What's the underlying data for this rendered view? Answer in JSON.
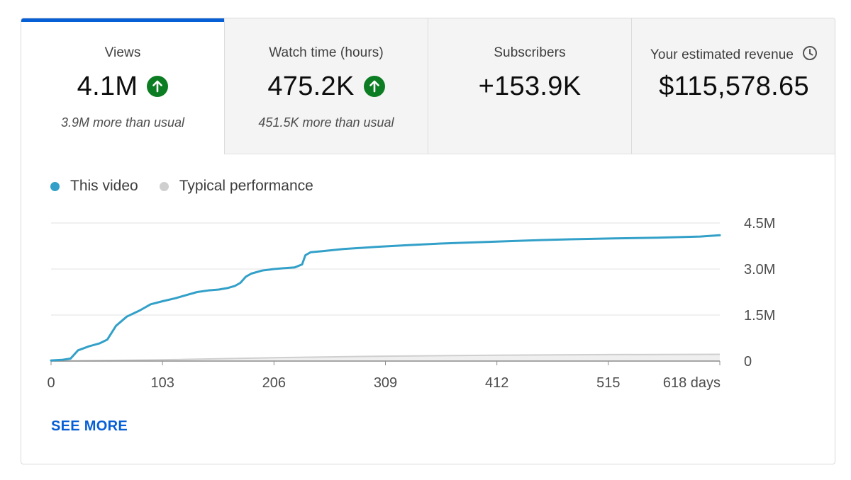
{
  "metrics": [
    {
      "label": "Views",
      "value": "4.1M",
      "trend": "up",
      "sub": "3.9M more than usual",
      "active": true
    },
    {
      "label": "Watch time (hours)",
      "value": "475.2K",
      "trend": "up",
      "sub": "451.5K more than usual",
      "active": false
    },
    {
      "label": "Subscribers",
      "value": "+153.9K",
      "trend": "",
      "sub": "",
      "active": false
    },
    {
      "label": "Your estimated revenue",
      "value": "$115,578.65",
      "trend": "",
      "sub": "",
      "active": false,
      "icon": "clock-icon"
    }
  ],
  "colors": {
    "accent": "#065fd4",
    "this_video": "#32a0c8",
    "typical": "#cfcfcf",
    "trend_up": "#0d7d24"
  },
  "legend": [
    {
      "name": "This video",
      "color": "#32a0c8"
    },
    {
      "name": "Typical performance",
      "color": "#cfcfcf"
    }
  ],
  "chart_data": {
    "type": "line",
    "x_unit": "days",
    "xlim": [
      0,
      618
    ],
    "ylim": [
      0,
      4500000
    ],
    "x_ticks": [
      0,
      103,
      206,
      309,
      412,
      515,
      618
    ],
    "x_tick_labels": [
      "0",
      "103",
      "206",
      "309",
      "412",
      "515",
      "618 days"
    ],
    "y_ticks": [
      0,
      1500000,
      3000000,
      4500000
    ],
    "y_tick_labels": [
      "0",
      "1.5M",
      "3.0M",
      "4.5M"
    ],
    "grid": true,
    "legend_position": "top-left",
    "series": [
      {
        "name": "This video",
        "color": "#32a0c8",
        "x": [
          0,
          10,
          18,
          25,
          35,
          45,
          52,
          60,
          70,
          82,
          92,
          103,
          115,
          125,
          135,
          145,
          155,
          163,
          170,
          175,
          180,
          185,
          195,
          206,
          216,
          225,
          232,
          235,
          240,
          250,
          270,
          300,
          330,
          360,
          400,
          440,
          480,
          520,
          560,
          600,
          618
        ],
        "y": [
          20000,
          40000,
          80000,
          350000,
          480000,
          580000,
          700000,
          1150000,
          1450000,
          1650000,
          1850000,
          1950000,
          2050000,
          2150000,
          2250000,
          2300000,
          2330000,
          2380000,
          2450000,
          2550000,
          2750000,
          2850000,
          2950000,
          3000000,
          3030000,
          3050000,
          3150000,
          3450000,
          3550000,
          3580000,
          3650000,
          3720000,
          3780000,
          3830000,
          3880000,
          3930000,
          3970000,
          4000000,
          4020000,
          4060000,
          4100000
        ]
      },
      {
        "name": "Typical performance",
        "color": "#cfcfcf",
        "x": [
          0,
          100,
          206,
          309,
          412,
          515,
          618
        ],
        "y": [
          0,
          40000,
          110000,
          160000,
          190000,
          210000,
          220000
        ]
      }
    ]
  },
  "see_more_label": "SEE MORE"
}
